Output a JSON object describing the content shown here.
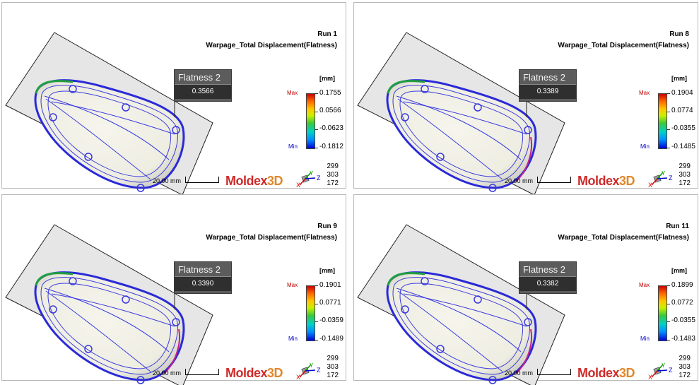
{
  "panels": [
    {
      "run": "Run 1",
      "title": "Warpage_Total Displacement(Flatness)",
      "flatness_label": "Flatness 2",
      "flatness_value": "0.3566",
      "unit": "[mm]",
      "max_label": "Max",
      "min_label": "Min",
      "legend_ticks": [
        "0.1755",
        "0.0566",
        "-0.0623",
        "-0.1812"
      ],
      "scale_label": "20.00 mm",
      "brand_main": "Moldex",
      "brand_suffix": "3D",
      "view_values": [
        "299",
        "303",
        "172"
      ]
    },
    {
      "run": "Run 8",
      "title": "Warpage_Total Displacement(Flatness)",
      "flatness_label": "Flatness 2",
      "flatness_value": "0.3389",
      "unit": "[mm]",
      "max_label": "Max",
      "min_label": "Min",
      "legend_ticks": [
        "0.1904",
        "0.0774",
        "-0.0355",
        "-0.1485"
      ],
      "scale_label": "20.00 mm",
      "brand_main": "Moldex",
      "brand_suffix": "3D",
      "view_values": [
        "299",
        "303",
        "172"
      ]
    },
    {
      "run": "Run 9",
      "title": "Warpage_Total Displacement(Flatness)",
      "flatness_label": "Flatness 2",
      "flatness_value": "0.3390",
      "unit": "[mm]",
      "max_label": "Max",
      "min_label": "Min",
      "legend_ticks": [
        "0.1901",
        "0.0771",
        "-0.0359",
        "-0.1489"
      ],
      "scale_label": "20.00 mm",
      "brand_main": "Moldex",
      "brand_suffix": "3D",
      "view_values": [
        "299",
        "303",
        "172"
      ]
    },
    {
      "run": "Run 11",
      "title": "Warpage_Total Displacement(Flatness)",
      "flatness_label": "Flatness 2",
      "flatness_value": "0.3382",
      "unit": "[mm]",
      "max_label": "Max",
      "min_label": "Min",
      "legend_ticks": [
        "0.1899",
        "0.0772",
        "-0.0355",
        "-0.1483"
      ],
      "scale_label": "20.00 mm",
      "brand_main": "Moldex",
      "brand_suffix": "3D",
      "view_values": [
        "299",
        "303",
        "172"
      ]
    }
  ],
  "axis_labels": {
    "x": "X",
    "y": "Y",
    "z": "Z"
  },
  "colors": {
    "max_red": "#c00000",
    "min_blue": "#0000c0",
    "brand_red": "#cf2b2b",
    "brand_orange": "#e0882a",
    "mesh_blue": "#2a2ad8",
    "plate_fill": "#e6e6e6"
  },
  "icons": [
    "axis-triad-icon"
  ]
}
